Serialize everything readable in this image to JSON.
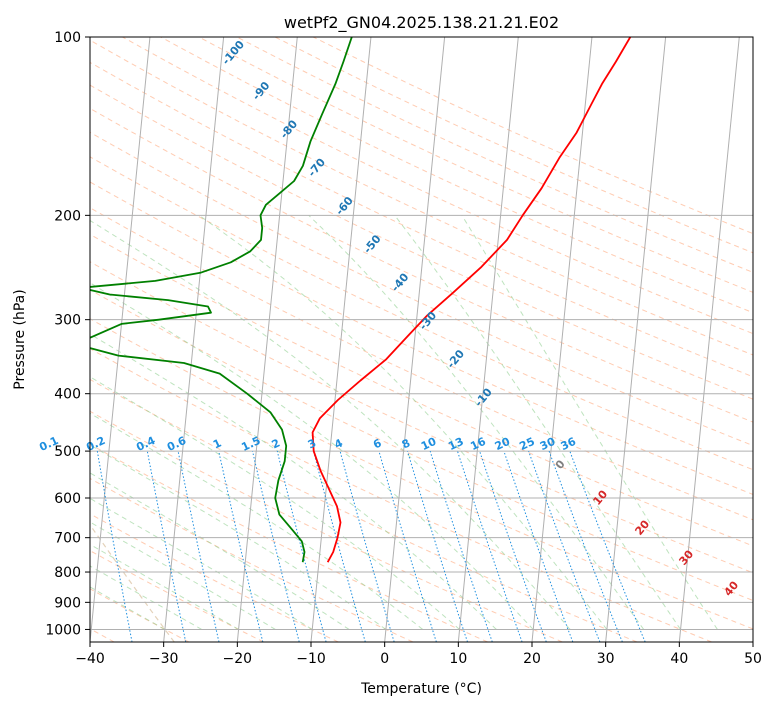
{
  "chart_data": {
    "type": "line",
    "title": "wetPf2_GN04.2025.138.21.21.E02",
    "xlabel": "Temperature (°C)",
    "ylabel": "Pressure (hPa)",
    "xlim": [
      -40,
      50
    ],
    "ylim": [
      1050,
      100
    ],
    "y_scale": "log",
    "grid": true,
    "x_ticks": [
      -40,
      -30,
      -20,
      -10,
      0,
      10,
      20,
      30,
      40,
      50
    ],
    "y_ticks": [
      1000,
      900,
      800,
      700,
      600,
      500,
      400,
      300,
      200,
      100
    ],
    "series": [
      {
        "color": "#ff0000",
        "points": [
          {
            "p": 770,
            "t": -8.8
          },
          {
            "p": 740,
            "t": -8.2
          },
          {
            "p": 700,
            "t": -7.8
          },
          {
            "p": 660,
            "t": -7.6
          },
          {
            "p": 620,
            "t": -8.3
          },
          {
            "p": 580,
            "t": -9.6
          },
          {
            "p": 540,
            "t": -11.0
          },
          {
            "p": 500,
            "t": -12.2
          },
          {
            "p": 465,
            "t": -12.6
          },
          {
            "p": 440,
            "t": -11.8
          },
          {
            "p": 410,
            "t": -9.6
          },
          {
            "p": 380,
            "t": -6.8
          },
          {
            "p": 350,
            "t": -3.6
          },
          {
            "p": 320,
            "t": -1.0
          },
          {
            "p": 295,
            "t": 1.4
          },
          {
            "p": 270,
            "t": 4.6
          },
          {
            "p": 245,
            "t": 8.0
          },
          {
            "p": 220,
            "t": 11.2
          },
          {
            "p": 200,
            "t": 13.0
          },
          {
            "p": 180,
            "t": 15.2
          },
          {
            "p": 160,
            "t": 17.2
          },
          {
            "p": 145,
            "t": 19.2
          },
          {
            "p": 130,
            "t": 20.8
          },
          {
            "p": 120,
            "t": 22.0
          },
          {
            "p": 110,
            "t": 23.6
          },
          {
            "p": 100,
            "t": 25.2
          }
        ]
      },
      {
        "color": "#008000",
        "points": [
          {
            "p": 770,
            "t": -12.2
          },
          {
            "p": 740,
            "t": -12.1
          },
          {
            "p": 710,
            "t": -12.6
          },
          {
            "p": 680,
            "t": -14.0
          },
          {
            "p": 640,
            "t": -16.0
          },
          {
            "p": 600,
            "t": -16.8
          },
          {
            "p": 560,
            "t": -16.6
          },
          {
            "p": 520,
            "t": -16.0
          },
          {
            "p": 490,
            "t": -16.0
          },
          {
            "p": 460,
            "t": -16.8
          },
          {
            "p": 430,
            "t": -18.6
          },
          {
            "p": 400,
            "t": -22.0
          },
          {
            "p": 370,
            "t": -26.0
          },
          {
            "p": 355,
            "t": -31.0
          },
          {
            "p": 345,
            "t": -40.0
          },
          {
            "p": 330,
            "t": -46.0
          },
          {
            "p": 305,
            "t": -40.0
          },
          {
            "p": 300,
            "t": -35.0
          },
          {
            "p": 292,
            "t": -28.0
          },
          {
            "p": 285,
            "t": -28.5
          },
          {
            "p": 278,
            "t": -34.0
          },
          {
            "p": 272,
            "t": -42.0
          },
          {
            "p": 265,
            "t": -46.0
          },
          {
            "p": 258,
            "t": -36.0
          },
          {
            "p": 250,
            "t": -30.0
          },
          {
            "p": 240,
            "t": -26.0
          },
          {
            "p": 230,
            "t": -23.5
          },
          {
            "p": 220,
            "t": -22.2
          },
          {
            "p": 210,
            "t": -22.2
          },
          {
            "p": 200,
            "t": -22.6
          },
          {
            "p": 192,
            "t": -22.0
          },
          {
            "p": 185,
            "t": -20.6
          },
          {
            "p": 175,
            "t": -18.5
          },
          {
            "p": 165,
            "t": -17.5
          },
          {
            "p": 150,
            "t": -16.8
          },
          {
            "p": 135,
            "t": -15.6
          },
          {
            "p": 120,
            "t": -14.2
          },
          {
            "p": 110,
            "t": -13.4
          },
          {
            "p": 100,
            "t": -12.6
          }
        ]
      }
    ],
    "dry_adiabat_labels": [
      "-100",
      "-90",
      "-80",
      "-70",
      "-60",
      "-50",
      "-40",
      "-30",
      "-20",
      "-10"
    ],
    "mixing_ratio_labels": [
      "0.1",
      "0.2",
      "0.4",
      "0.6",
      "1",
      "1.5",
      "2",
      "3",
      "4",
      "6",
      "8",
      "10",
      "13",
      "16",
      "20",
      "25",
      "30",
      "36"
    ],
    "moist_adiabat_labels": [
      "0",
      "10",
      "20",
      "30",
      "40"
    ],
    "colors": {
      "isotherm": "#b0b0b0",
      "dry_adiabat": "#ff9966",
      "moist_adiabat": "#88cc88",
      "mixing_ratio": "#1f8fdf",
      "dry_label": "#1f77b4",
      "mixing_label": "#1f8fdf",
      "moist_label_zero": "#808080",
      "moist_label": "#d62728",
      "isohume": "#d2b48c"
    }
  }
}
